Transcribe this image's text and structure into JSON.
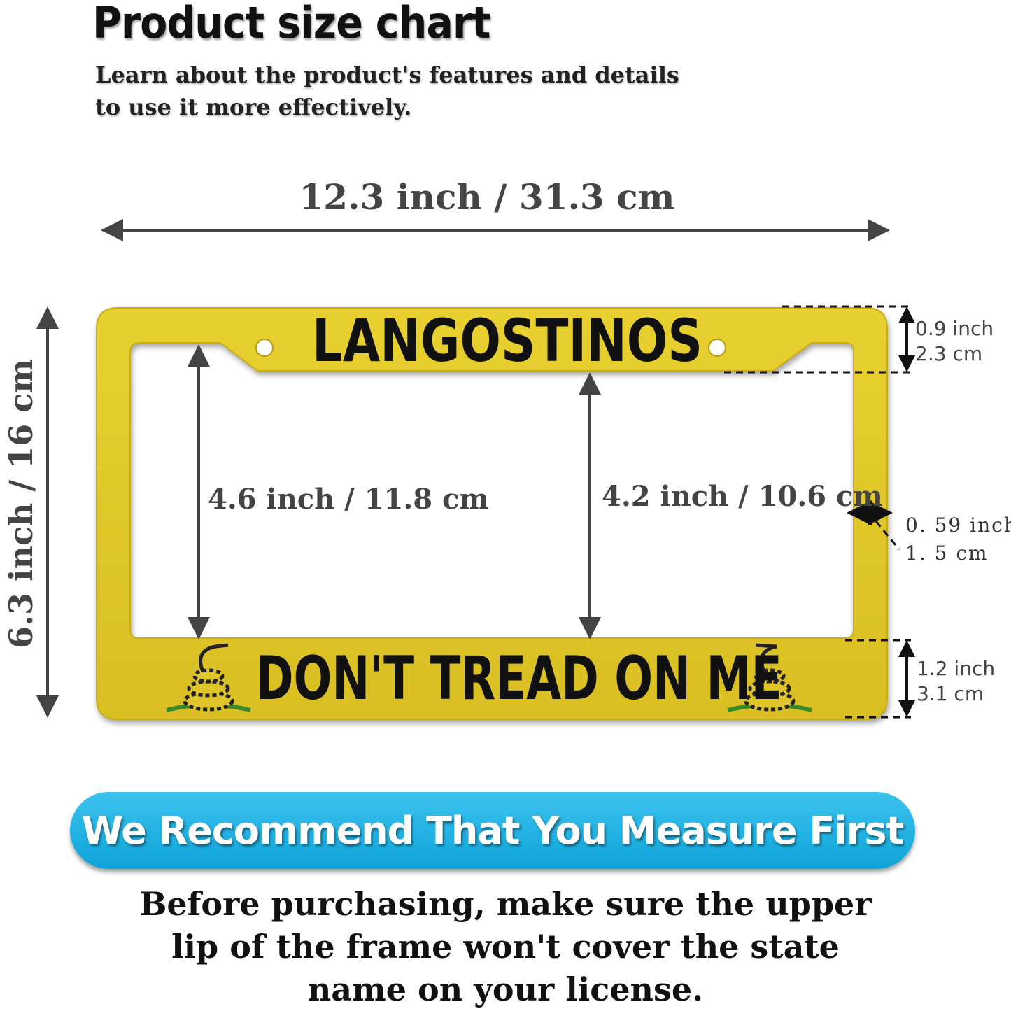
{
  "header": {
    "title": "Product size chart",
    "subtitle_lines": [
      "Learn about the product's features and details",
      "to use it more effectively."
    ]
  },
  "dimensions": {
    "overall_width": "12.3 inch / 31.3 cm",
    "overall_height": "6.3 inch / 16 cm",
    "inner_height_left": "4.6 inch / 11.8 cm",
    "inner_height_center": "4.2 inch / 10.6 cm",
    "top_border": {
      "inch": "0.9 inch",
      "cm": "2.3 cm"
    },
    "side_border": {
      "inch": "0. 59 inch",
      "cm": "1. 5 cm"
    },
    "bottom_border": {
      "inch": "1.2 inch",
      "cm": "3.1 cm"
    }
  },
  "plate_frame": {
    "top_text": "LANGOSTINOS",
    "bottom_text": "DON'T TREAD ON ME",
    "frame_color": "#e2c82a",
    "icons": [
      "coiled-snake-icon",
      "coiled-snake-icon"
    ]
  },
  "banner": {
    "text": "We Recommend That You Measure First",
    "color": "#1aaee0"
  },
  "note_lines": [
    "Before purchasing, make sure the upper",
    "lip of the frame won't cover the state",
    "name on your license."
  ]
}
